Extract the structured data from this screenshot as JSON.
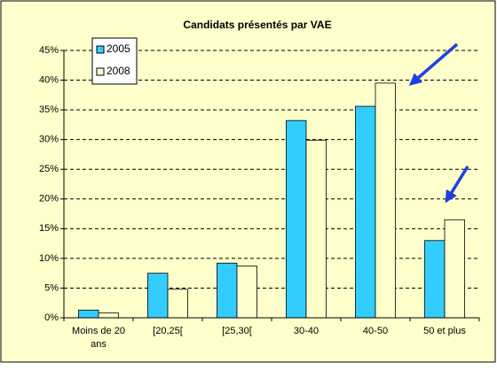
{
  "chart_data": {
    "type": "bar",
    "title": "Candidats présentés par VAE",
    "categories": [
      "Moins de 20 ans",
      "[20,25[",
      "[25,30[",
      "30-40",
      "40-50",
      "50 et plus"
    ],
    "series": [
      {
        "name": "2005",
        "color": "#33ccff",
        "values": [
          1.3,
          7.5,
          9.2,
          33.2,
          35.6,
          13.0
        ]
      },
      {
        "name": "2008",
        "color": "#ffffcc",
        "values": [
          0.8,
          4.8,
          8.7,
          29.9,
          39.5,
          16.5
        ]
      }
    ],
    "ylim": [
      0,
      45
    ],
    "yticks": [
      {
        "value": 0,
        "label": "0%"
      },
      {
        "value": 5,
        "label": "5%"
      },
      {
        "value": 10,
        "label": "10%"
      },
      {
        "value": 15,
        "label": "15%"
      },
      {
        "value": 20,
        "label": "20%"
      },
      {
        "value": 25,
        "label": "25%"
      },
      {
        "value": 30,
        "label": "30%"
      },
      {
        "value": 35,
        "label": "35%"
      },
      {
        "value": 40,
        "label": "40%"
      },
      {
        "value": 45,
        "label": "45%"
      }
    ],
    "grid": true,
    "legend": "upper left"
  }
}
